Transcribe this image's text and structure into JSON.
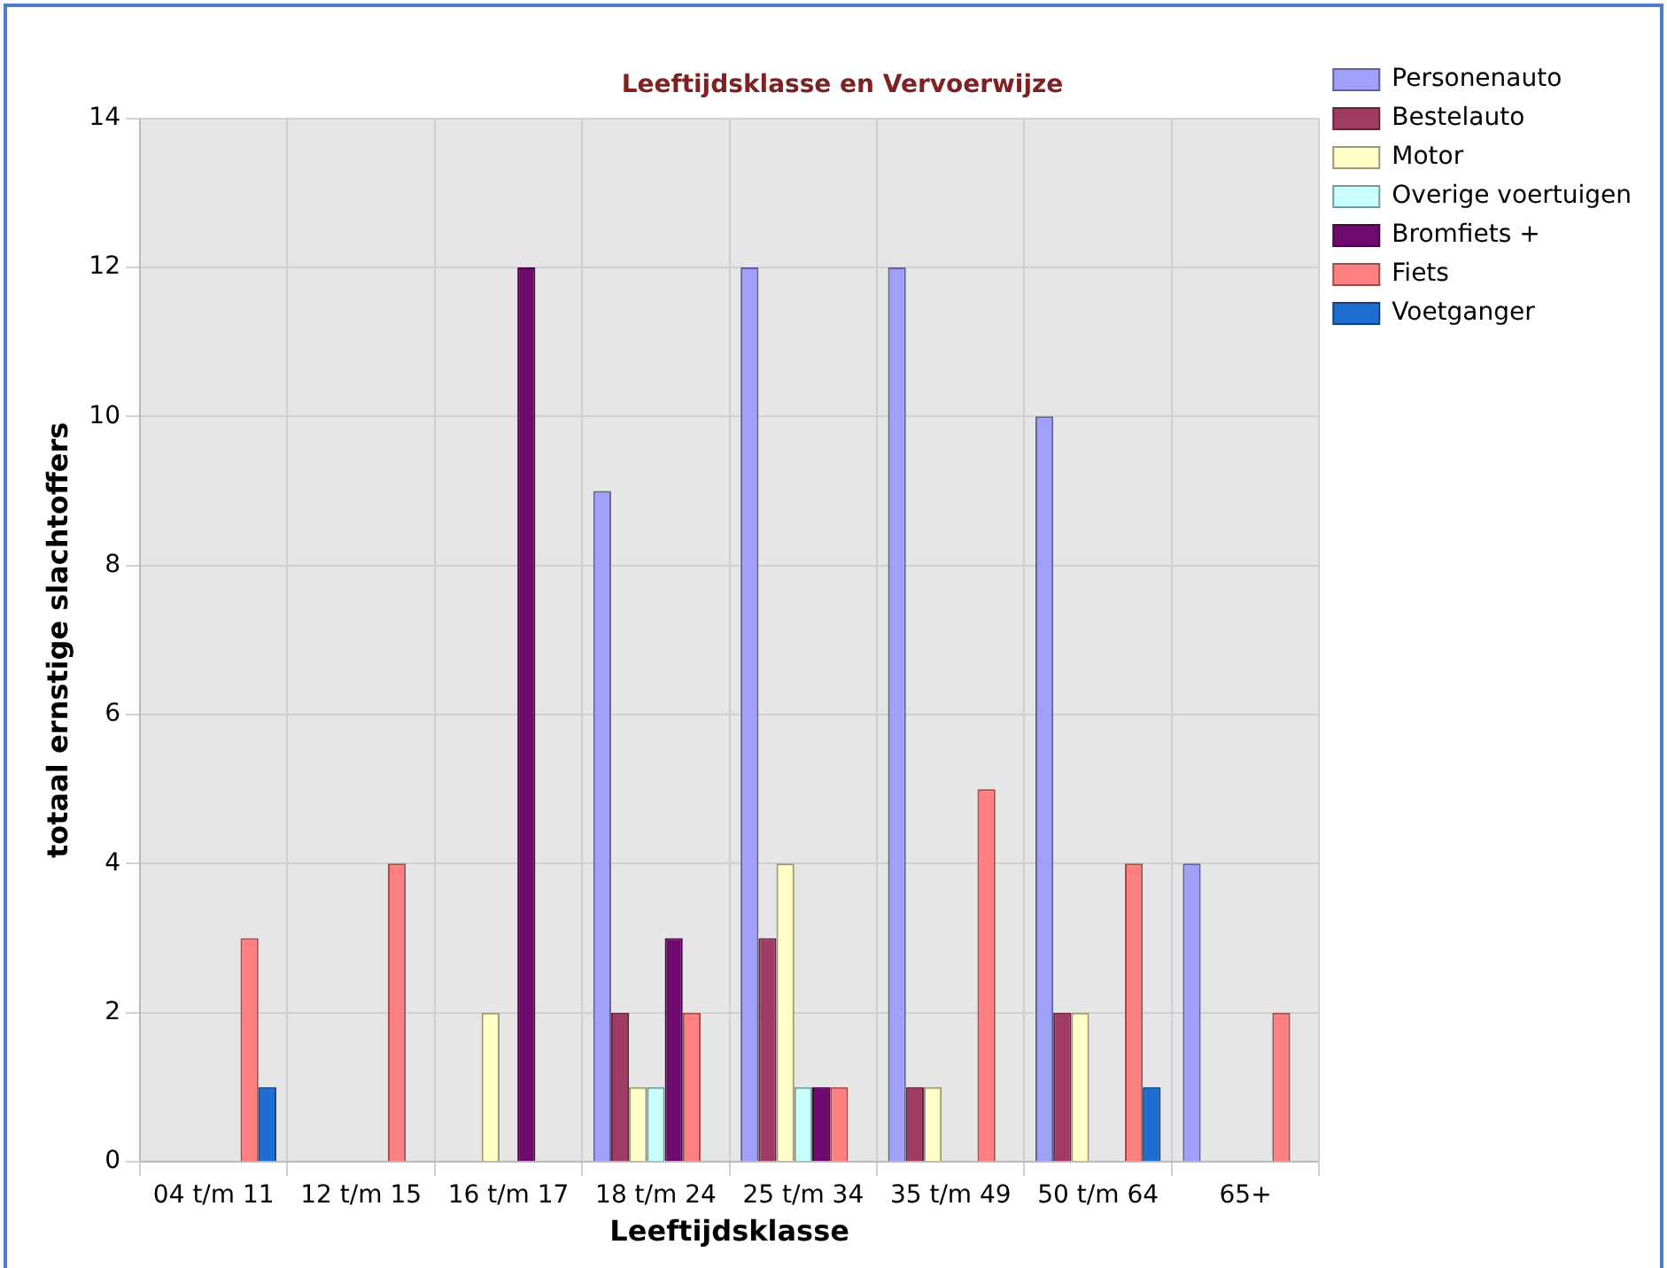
{
  "chart_data": {
    "type": "bar",
    "title": "Leeftijdsklasse en Vervoerwijze",
    "xlabel": "Leeftijdsklasse",
    "ylabel": "totaal ernstige slachtoffers",
    "categories": [
      "04 t/m 11",
      "12 t/m 15",
      "16 t/m 17",
      "18 t/m 24",
      "25 t/m 34",
      "35 t/m 49",
      "50 t/m 64",
      "65+"
    ],
    "series": [
      {
        "name": "Personenauto",
        "color": "#a0a0f8",
        "values": [
          0,
          0,
          0,
          9,
          12,
          12,
          10,
          4
        ]
      },
      {
        "name": "Bestelauto",
        "color": "#a03c64",
        "values": [
          0,
          0,
          0,
          2,
          3,
          1,
          2,
          0
        ]
      },
      {
        "name": "Motor",
        "color": "#ffffc8",
        "values": [
          0,
          0,
          2,
          1,
          4,
          1,
          2,
          0
        ]
      },
      {
        "name": "Overige voertuigen",
        "color": "#c8ffff",
        "values": [
          0,
          0,
          0,
          1,
          1,
          0,
          0,
          0
        ]
      },
      {
        "name": "Bromfiets +",
        "color": "#6e0a6e",
        "values": [
          0,
          0,
          12,
          3,
          1,
          0,
          0,
          0
        ]
      },
      {
        "name": "Fiets",
        "color": "#ff8080",
        "values": [
          3,
          4,
          0,
          2,
          1,
          5,
          4,
          2
        ]
      },
      {
        "name": "Voetganger",
        "color": "#1e6ed2",
        "values": [
          1,
          0,
          0,
          0,
          0,
          0,
          1,
          0
        ]
      }
    ],
    "ylim": [
      0,
      14
    ],
    "yticks": [
      0,
      2,
      4,
      6,
      8,
      10,
      12,
      14
    ],
    "grid": true,
    "legend": "top right"
  }
}
